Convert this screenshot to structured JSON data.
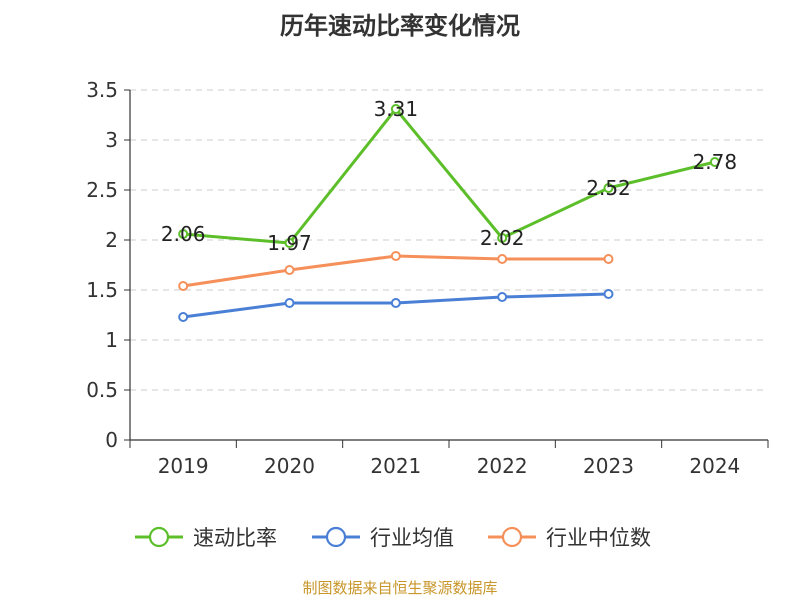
{
  "chart_data": {
    "type": "line",
    "title": "历年速动比率变化情况",
    "categories": [
      "2019",
      "2020",
      "2021",
      "2022",
      "2023",
      "2024"
    ],
    "ylim": [
      0,
      3.5
    ],
    "yticks": [
      "0",
      "0.5",
      "1",
      "1.5",
      "2",
      "2.5",
      "3",
      "3.5"
    ],
    "grid": true,
    "legend_position": "bottom",
    "series": [
      {
        "name": "速动比率",
        "color": "#5cbf2a",
        "values": [
          2.06,
          1.97,
          3.31,
          2.02,
          2.52,
          2.78
        ],
        "labels": [
          "2.06",
          "1.97",
          "3.31",
          "2.02",
          "2.52",
          "2.78"
        ]
      },
      {
        "name": "行业均值",
        "color": "#4a7fd6",
        "values": [
          1.23,
          1.37,
          1.37,
          1.43,
          1.46,
          null
        ]
      },
      {
        "name": "行业中位数",
        "color": "#f5905a",
        "values": [
          1.54,
          1.7,
          1.84,
          1.81,
          1.81,
          null
        ]
      }
    ]
  },
  "source_note": "制图数据来自恒生聚源数据库"
}
